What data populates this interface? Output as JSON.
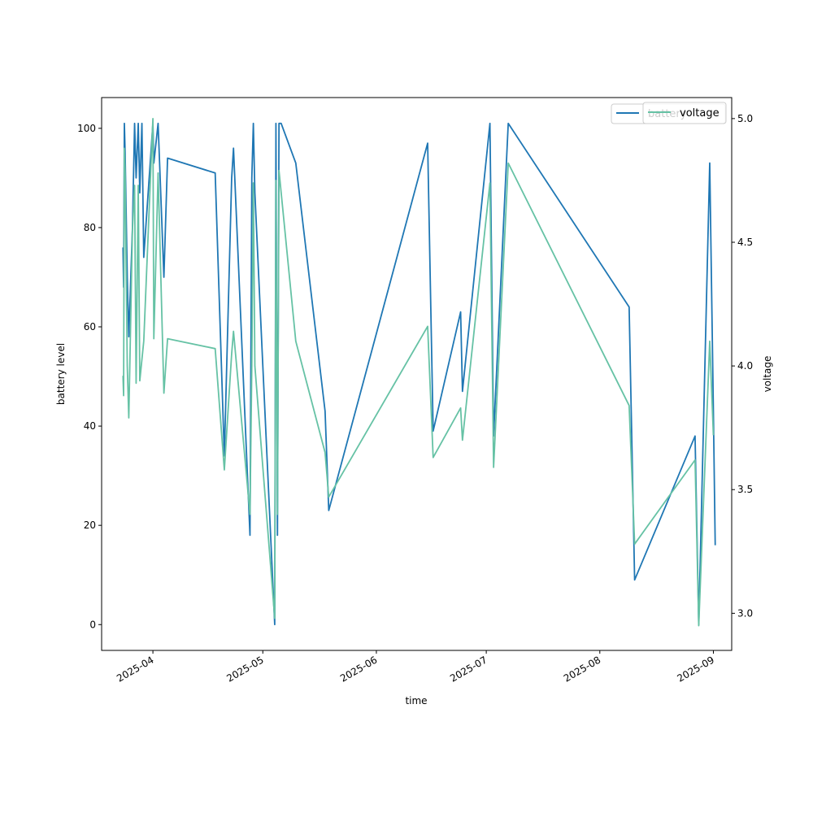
{
  "chart_data": {
    "type": "line",
    "title": "",
    "xlabel": "time",
    "ylabel": "battery level",
    "y2label": "voltage",
    "xlim": [
      "2025-03-18",
      "2025-09-06"
    ],
    "ylim": [
      -5.2,
      106.2
    ],
    "y2lim": [
      2.85,
      5.085
    ],
    "x_ticks": [
      "2025-04",
      "2025-05",
      "2025-06",
      "2025-07",
      "2025-08",
      "2025-09"
    ],
    "y_ticks": [
      0,
      20,
      40,
      60,
      80,
      100
    ],
    "y2_ticks": [
      "3.0",
      "3.5",
      "4.0",
      "4.5",
      "5.0"
    ],
    "grid": false,
    "legend": {
      "placement": "upper right",
      "entries": [
        "battery",
        "voltage"
      ]
    },
    "series": [
      {
        "name": "battery",
        "axis": "left",
        "color": "#1f77b4",
        "points": [
          [
            "2025-03-23T20:00",
            76
          ],
          [
            "2025-03-24T00:00",
            68
          ],
          [
            "2025-03-24T05:00",
            101
          ],
          [
            "2025-03-24T10:00",
            95
          ],
          [
            "2025-03-25T00:00",
            70
          ],
          [
            "2025-03-25T10:00",
            58
          ],
          [
            "2025-03-26T10:00",
            80
          ],
          [
            "2025-03-27T00:00",
            101
          ],
          [
            "2025-03-27T10:00",
            90
          ],
          [
            "2025-03-28T00:00",
            101
          ],
          [
            "2025-03-28T10:00",
            87
          ],
          [
            "2025-03-29T00:00",
            101
          ],
          [
            "2025-03-29T12:00",
            74
          ],
          [
            "2025-04-01T00:00",
            101
          ],
          [
            "2025-04-01T06:00",
            93
          ],
          [
            "2025-04-02T10:00",
            101
          ],
          [
            "2025-04-04T00:00",
            70
          ],
          [
            "2025-04-05T00:00",
            94
          ],
          [
            "2025-04-18T00:00",
            91
          ],
          [
            "2025-04-20T12:00",
            34
          ],
          [
            "2025-04-22T12:00",
            90
          ],
          [
            "2025-04-23T00:00",
            96
          ],
          [
            "2025-04-27T12:00",
            18
          ],
          [
            "2025-04-28T00:00",
            90
          ],
          [
            "2025-04-28T10:00",
            101
          ],
          [
            "2025-04-28T20:00",
            87
          ],
          [
            "2025-05-04T06:00",
            0
          ],
          [
            "2025-05-04T14:00",
            101
          ],
          [
            "2025-05-05T00:00",
            18
          ],
          [
            "2025-05-05T10:00",
            101
          ],
          [
            "2025-05-06T00:00",
            101
          ],
          [
            "2025-05-10T00:00",
            93
          ],
          [
            "2025-05-18T00:00",
            43
          ],
          [
            "2025-05-19T00:00",
            23
          ],
          [
            "2025-06-15T00:00",
            97
          ],
          [
            "2025-06-16T12:00",
            39
          ],
          [
            "2025-06-24T00:00",
            63
          ],
          [
            "2025-06-24T12:00",
            47
          ],
          [
            "2025-07-02T00:00",
            101
          ],
          [
            "2025-07-03T00:00",
            38
          ],
          [
            "2025-07-07T00:00",
            101
          ],
          [
            "2025-08-09T00:00",
            64
          ],
          [
            "2025-08-10T12:00",
            9
          ],
          [
            "2025-08-27T00:00",
            38
          ],
          [
            "2025-08-28T00:00",
            0
          ],
          [
            "2025-08-31T00:00",
            93
          ],
          [
            "2025-09-01T00:00",
            43
          ],
          [
            "2025-09-01T12:00",
            16
          ]
        ]
      },
      {
        "name": "voltage",
        "axis": "right",
        "color": "#66c2a5",
        "points": [
          [
            "2025-03-23T20:00",
            3.96
          ],
          [
            "2025-03-24T00:00",
            3.88
          ],
          [
            "2025-03-24T05:00",
            4.88
          ],
          [
            "2025-03-24T10:00",
            4.78
          ],
          [
            "2025-03-25T00:00",
            4.0
          ],
          [
            "2025-03-25T10:00",
            3.79
          ],
          [
            "2025-03-26T10:00",
            4.55
          ],
          [
            "2025-03-27T00:00",
            4.73
          ],
          [
            "2025-03-27T10:00",
            3.93
          ],
          [
            "2025-03-28T00:00",
            4.73
          ],
          [
            "2025-03-28T10:00",
            3.94
          ],
          [
            "2025-03-29T12:00",
            4.1
          ],
          [
            "2025-04-01T00:00",
            5.0
          ],
          [
            "2025-04-01T06:00",
            4.11
          ],
          [
            "2025-04-02T10:00",
            4.78
          ],
          [
            "2025-04-04T00:00",
            3.89
          ],
          [
            "2025-04-05T00:00",
            4.11
          ],
          [
            "2025-04-18T00:00",
            4.07
          ],
          [
            "2025-04-20T12:00",
            3.58
          ],
          [
            "2025-04-22T12:00",
            4.05
          ],
          [
            "2025-04-23T00:00",
            4.14
          ],
          [
            "2025-04-27T12:00",
            3.4
          ],
          [
            "2025-04-28T00:00",
            4.0
          ],
          [
            "2025-04-28T10:00",
            4.74
          ],
          [
            "2025-04-28T20:00",
            4.0
          ],
          [
            "2025-05-04T06:00",
            2.98
          ],
          [
            "2025-05-04T14:00",
            4.75
          ],
          [
            "2025-05-05T00:00",
            3.4
          ],
          [
            "2025-05-05T10:00",
            4.79
          ],
          [
            "2025-05-10T00:00",
            4.1
          ],
          [
            "2025-05-18T00:00",
            3.65
          ],
          [
            "2025-05-19T00:00",
            3.47
          ],
          [
            "2025-06-15T00:00",
            4.16
          ],
          [
            "2025-06-16T12:00",
            3.63
          ],
          [
            "2025-06-24T00:00",
            3.83
          ],
          [
            "2025-06-24T12:00",
            3.7
          ],
          [
            "2025-07-02T00:00",
            4.74
          ],
          [
            "2025-07-03T00:00",
            3.59
          ],
          [
            "2025-07-07T00:00",
            4.82
          ],
          [
            "2025-08-09T00:00",
            3.84
          ],
          [
            "2025-08-10T12:00",
            3.28
          ],
          [
            "2025-08-27T00:00",
            3.62
          ],
          [
            "2025-08-28T00:00",
            2.95
          ],
          [
            "2025-08-31T00:00",
            4.1
          ],
          [
            "2025-09-01T00:00",
            3.72
          ]
        ]
      }
    ]
  }
}
